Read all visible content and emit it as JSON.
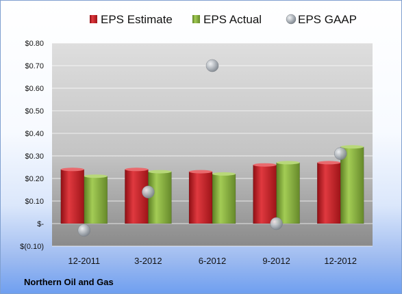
{
  "chart_data": {
    "type": "bar",
    "categories": [
      "12-2011",
      "3-2012",
      "6-2012",
      "9-2012",
      "12-2012"
    ],
    "series": [
      {
        "name": "EPS Estimate",
        "kind": "bar",
        "color": "#cc2027",
        "values": [
          0.24,
          0.24,
          0.23,
          0.26,
          0.27
        ]
      },
      {
        "name": "EPS Actual",
        "kind": "bar",
        "color": "#86b33a",
        "values": [
          0.21,
          0.23,
          0.22,
          0.27,
          0.34
        ]
      },
      {
        "name": "EPS GAAP",
        "kind": "scatter",
        "color": "#a7adb4",
        "values": [
          -0.03,
          0.14,
          0.7,
          0.0,
          0.31
        ]
      }
    ],
    "yticks": [
      "$(0.10)",
      "$-",
      "$0.10",
      "$0.20",
      "$0.30",
      "$0.40",
      "$0.50",
      "$0.60",
      "$0.70",
      "$0.80"
    ],
    "ylim": [
      -0.1,
      0.8
    ],
    "grid": true,
    "legend": "top"
  },
  "footer": {
    "title": "Northern Oil and Gas"
  }
}
